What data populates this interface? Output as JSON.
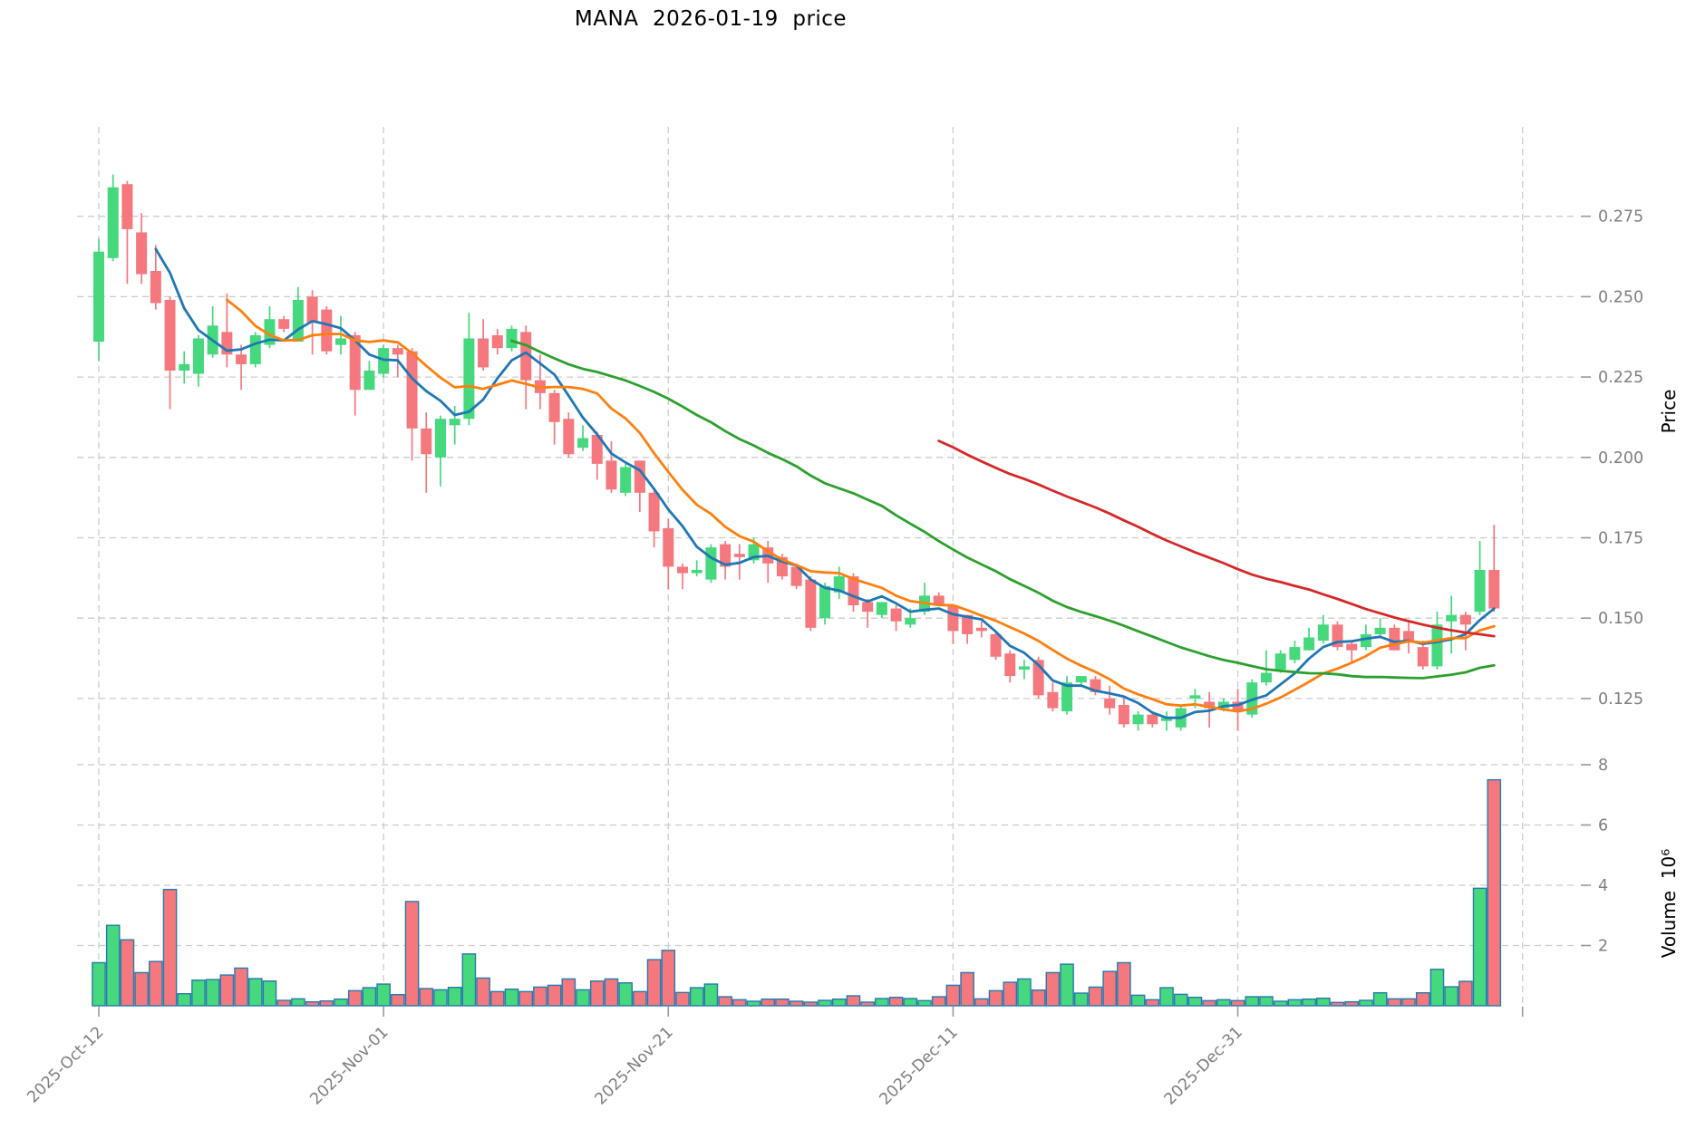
{
  "title": "MANA  2026-01-19  price",
  "axes": {
    "price_label": "Price",
    "volume_label": "Volume  10⁶"
  },
  "chart_data": {
    "type": "candlestick+volume",
    "title": "MANA  2026-01-19  price",
    "ylabel_price": "Price",
    "ylabel_volume": "Volume 10^6",
    "grid": "dashed",
    "x_ticks": [
      {
        "label": "2025-Oct-12",
        "index": 0
      },
      {
        "label": "2025-Nov-01",
        "index": 20
      },
      {
        "label": "2025-Nov-21",
        "index": 40
      },
      {
        "label": "2025-Dec-11",
        "index": 60
      },
      {
        "label": "2025-Dec-31",
        "index": 80
      },
      {
        "label": "",
        "index": 100
      }
    ],
    "price_ticks": [
      {
        "label": "0.275",
        "value": 0.275
      },
      {
        "label": "0.250",
        "value": 0.25
      },
      {
        "label": "0.225",
        "value": 0.225
      },
      {
        "label": "0.200",
        "value": 0.2
      },
      {
        "label": "0.175",
        "value": 0.175
      },
      {
        "label": "0.150",
        "value": 0.15
      },
      {
        "label": "0.125",
        "value": 0.125
      }
    ],
    "volume_ticks": [
      {
        "label": "2",
        "value": 2
      },
      {
        "label": "4",
        "value": 4
      },
      {
        "label": "6",
        "value": 6
      },
      {
        "label": "8",
        "value": 8
      }
    ],
    "price_range": [
      0.108,
      0.298
    ],
    "volume_range_millions": [
      0,
      8.4
    ],
    "moving_averages": [
      {
        "window": 5,
        "color": "#1f77b4"
      },
      {
        "window": 10,
        "color": "#ff7f0e"
      },
      {
        "window": 30,
        "color": "#2ca02c"
      },
      {
        "window": 60,
        "color": "#d62728"
      }
    ],
    "colors": {
      "up": "#45d87d",
      "down": "#f4787e",
      "volume_border": "#2779ae",
      "grid": "#cccccc",
      "tick_mark": "#999999",
      "tick_text": "#7f7f7f",
      "title_text": "#000000"
    },
    "candles": {
      "open": [
        0.236,
        0.262,
        0.285,
        0.27,
        0.258,
        0.249,
        0.227,
        0.226,
        0.232,
        0.239,
        0.232,
        0.229,
        0.235,
        0.243,
        0.236,
        0.25,
        0.246,
        0.235,
        0.238,
        0.221,
        0.226,
        0.234,
        0.233,
        0.209,
        0.2,
        0.21,
        0.212,
        0.237,
        0.238,
        0.234,
        0.239,
        0.224,
        0.22,
        0.212,
        0.203,
        0.207,
        0.199,
        0.189,
        0.199,
        0.189,
        0.178,
        0.166,
        0.164,
        0.162,
        0.173,
        0.17,
        0.168,
        0.172,
        0.169,
        0.166,
        0.162,
        0.15,
        0.158,
        0.163,
        0.155,
        0.151,
        0.153,
        0.148,
        0.152,
        0.157,
        0.154,
        0.151,
        0.147,
        0.145,
        0.139,
        0.134,
        0.137,
        0.127,
        0.121,
        0.13,
        0.131,
        0.125,
        0.123,
        0.117,
        0.12,
        0.118,
        0.116,
        0.125,
        0.124,
        0.122,
        0.124,
        0.12,
        0.13,
        0.134,
        0.137,
        0.14,
        0.143,
        0.148,
        0.142,
        0.141,
        0.145,
        0.147,
        0.146,
        0.141,
        0.135,
        0.149,
        0.151,
        0.152,
        0.165
      ],
      "high": [
        0.268,
        0.288,
        0.286,
        0.276,
        0.266,
        0.25,
        0.233,
        0.238,
        0.247,
        0.251,
        0.235,
        0.239,
        0.247,
        0.244,
        0.253,
        0.252,
        0.247,
        0.244,
        0.239,
        0.23,
        0.235,
        0.235,
        0.234,
        0.214,
        0.213,
        0.216,
        0.245,
        0.243,
        0.24,
        0.241,
        0.241,
        0.232,
        0.221,
        0.214,
        0.21,
        0.208,
        0.205,
        0.198,
        0.199,
        0.19,
        0.181,
        0.167,
        0.168,
        0.173,
        0.174,
        0.173,
        0.175,
        0.174,
        0.17,
        0.167,
        0.163,
        0.161,
        0.166,
        0.164,
        0.156,
        0.155,
        0.154,
        0.153,
        0.161,
        0.158,
        0.154,
        0.151,
        0.149,
        0.146,
        0.14,
        0.137,
        0.138,
        0.13,
        0.132,
        0.132,
        0.132,
        0.129,
        0.125,
        0.121,
        0.121,
        0.121,
        0.123,
        0.128,
        0.127,
        0.125,
        0.128,
        0.131,
        0.14,
        0.14,
        0.143,
        0.147,
        0.151,
        0.149,
        0.143,
        0.148,
        0.15,
        0.148,
        0.149,
        0.143,
        0.152,
        0.157,
        0.152,
        0.174,
        0.179
      ],
      "low": [
        0.23,
        0.261,
        0.254,
        0.254,
        0.246,
        0.215,
        0.223,
        0.222,
        0.231,
        0.228,
        0.221,
        0.228,
        0.234,
        0.239,
        0.236,
        0.232,
        0.232,
        0.232,
        0.213,
        0.221,
        0.225,
        0.225,
        0.199,
        0.189,
        0.191,
        0.204,
        0.21,
        0.227,
        0.232,
        0.233,
        0.215,
        0.215,
        0.204,
        0.2,
        0.202,
        0.193,
        0.189,
        0.188,
        0.183,
        0.172,
        0.159,
        0.159,
        0.163,
        0.161,
        0.162,
        0.162,
        0.167,
        0.161,
        0.162,
        0.159,
        0.146,
        0.148,
        0.156,
        0.152,
        0.147,
        0.15,
        0.146,
        0.147,
        0.151,
        0.154,
        0.142,
        0.142,
        0.144,
        0.137,
        0.13,
        0.131,
        0.125,
        0.121,
        0.12,
        0.129,
        0.126,
        0.12,
        0.116,
        0.115,
        0.116,
        0.115,
        0.115,
        0.122,
        0.116,
        0.121,
        0.115,
        0.119,
        0.129,
        0.133,
        0.136,
        0.14,
        0.142,
        0.14,
        0.136,
        0.14,
        0.144,
        0.14,
        0.139,
        0.134,
        0.134,
        0.139,
        0.14,
        0.151,
        0.152
      ],
      "close": [
        0.264,
        0.284,
        0.271,
        0.257,
        0.248,
        0.227,
        0.229,
        0.237,
        0.241,
        0.232,
        0.229,
        0.238,
        0.243,
        0.24,
        0.249,
        0.242,
        0.233,
        0.237,
        0.221,
        0.227,
        0.234,
        0.232,
        0.209,
        0.201,
        0.212,
        0.212,
        0.237,
        0.228,
        0.234,
        0.24,
        0.224,
        0.22,
        0.211,
        0.201,
        0.206,
        0.198,
        0.19,
        0.197,
        0.189,
        0.177,
        0.166,
        0.164,
        0.165,
        0.172,
        0.166,
        0.169,
        0.173,
        0.167,
        0.163,
        0.16,
        0.147,
        0.16,
        0.163,
        0.154,
        0.152,
        0.155,
        0.149,
        0.15,
        0.157,
        0.154,
        0.146,
        0.145,
        0.146,
        0.138,
        0.132,
        0.135,
        0.126,
        0.122,
        0.13,
        0.132,
        0.127,
        0.122,
        0.117,
        0.12,
        0.117,
        0.119,
        0.122,
        0.126,
        0.122,
        0.124,
        0.121,
        0.13,
        0.133,
        0.139,
        0.141,
        0.144,
        0.148,
        0.141,
        0.14,
        0.145,
        0.147,
        0.14,
        0.143,
        0.135,
        0.148,
        0.151,
        0.148,
        0.165,
        0.153
      ],
      "volume_millions": [
        1.43,
        2.67,
        2.19,
        1.1,
        1.47,
        3.86,
        0.4,
        0.85,
        0.87,
        1.02,
        1.25,
        0.9,
        0.82,
        0.18,
        0.23,
        0.13,
        0.16,
        0.22,
        0.5,
        0.6,
        0.72,
        0.37,
        3.46,
        0.57,
        0.53,
        0.61,
        1.72,
        0.92,
        0.47,
        0.55,
        0.47,
        0.62,
        0.68,
        0.89,
        0.53,
        0.82,
        0.89,
        0.76,
        0.47,
        1.53,
        1.84,
        0.44,
        0.6,
        0.72,
        0.3,
        0.2,
        0.15,
        0.22,
        0.22,
        0.15,
        0.12,
        0.18,
        0.22,
        0.33,
        0.12,
        0.24,
        0.28,
        0.24,
        0.17,
        0.3,
        0.68,
        1.1,
        0.23,
        0.5,
        0.78,
        0.89,
        0.52,
        1.1,
        1.38,
        0.42,
        0.62,
        1.14,
        1.43,
        0.35,
        0.2,
        0.6,
        0.38,
        0.28,
        0.17,
        0.2,
        0.17,
        0.3,
        0.3,
        0.15,
        0.2,
        0.22,
        0.25,
        0.11,
        0.13,
        0.18,
        0.43,
        0.23,
        0.23,
        0.43,
        1.21,
        0.63,
        0.81,
        3.9,
        7.5
      ]
    }
  }
}
